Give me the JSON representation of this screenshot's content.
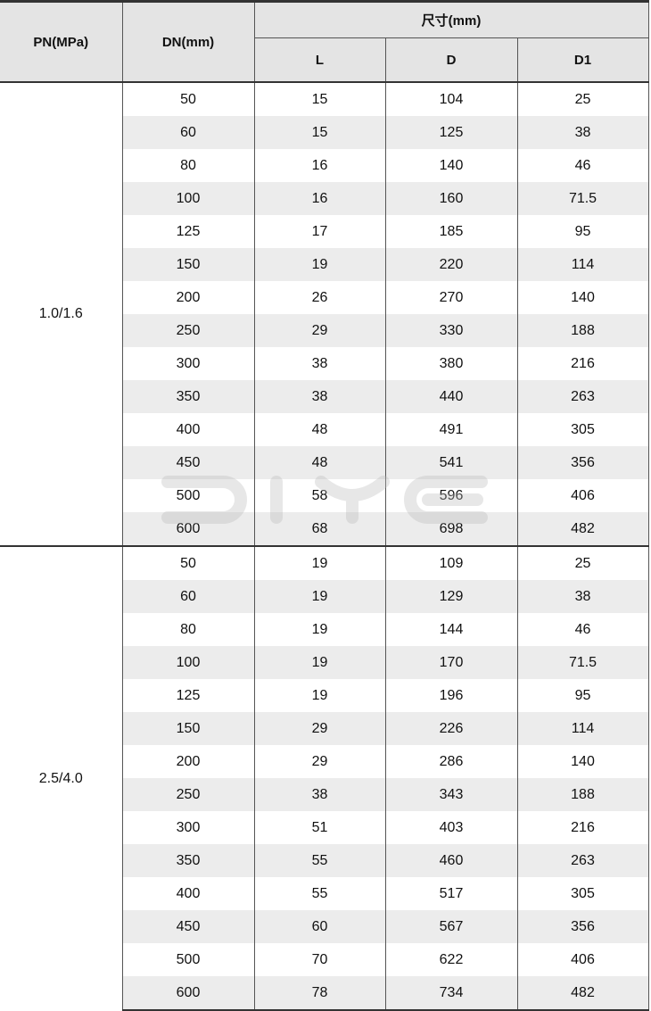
{
  "header": {
    "pn": "PN(MPa)",
    "dn": "DN(mm)",
    "size_group": "尺寸(mm)",
    "l": "L",
    "d": "D",
    "d1": "D1"
  },
  "watermark": "DIYE",
  "groups": [
    {
      "pn": "1.0/1.6",
      "rows": [
        [
          "50",
          "15",
          "104",
          "25"
        ],
        [
          "60",
          "15",
          "125",
          "38"
        ],
        [
          "80",
          "16",
          "140",
          "46"
        ],
        [
          "100",
          "16",
          "160",
          "71.5"
        ],
        [
          "125",
          "17",
          "185",
          "95"
        ],
        [
          "150",
          "19",
          "220",
          "114"
        ],
        [
          "200",
          "26",
          "270",
          "140"
        ],
        [
          "250",
          "29",
          "330",
          "188"
        ],
        [
          "300",
          "38",
          "380",
          "216"
        ],
        [
          "350",
          "38",
          "440",
          "263"
        ],
        [
          "400",
          "48",
          "491",
          "305"
        ],
        [
          "450",
          "48",
          "541",
          "356"
        ],
        [
          "500",
          "58",
          "596",
          "406"
        ],
        [
          "600",
          "68",
          "698",
          "482"
        ]
      ]
    },
    {
      "pn": "2.5/4.0",
      "rows": [
        [
          "50",
          "19",
          "109",
          "25"
        ],
        [
          "60",
          "19",
          "129",
          "38"
        ],
        [
          "80",
          "19",
          "144",
          "46"
        ],
        [
          "100",
          "19",
          "170",
          "71.5"
        ],
        [
          "125",
          "19",
          "196",
          "95"
        ],
        [
          "150",
          "29",
          "226",
          "114"
        ],
        [
          "200",
          "29",
          "286",
          "140"
        ],
        [
          "250",
          "38",
          "343",
          "188"
        ],
        [
          "300",
          "51",
          "403",
          "216"
        ],
        [
          "350",
          "55",
          "460",
          "263"
        ],
        [
          "400",
          "55",
          "517",
          "305"
        ],
        [
          "450",
          "60",
          "567",
          "356"
        ],
        [
          "500",
          "70",
          "622",
          "406"
        ],
        [
          "600",
          "78",
          "734",
          "482"
        ]
      ]
    }
  ]
}
